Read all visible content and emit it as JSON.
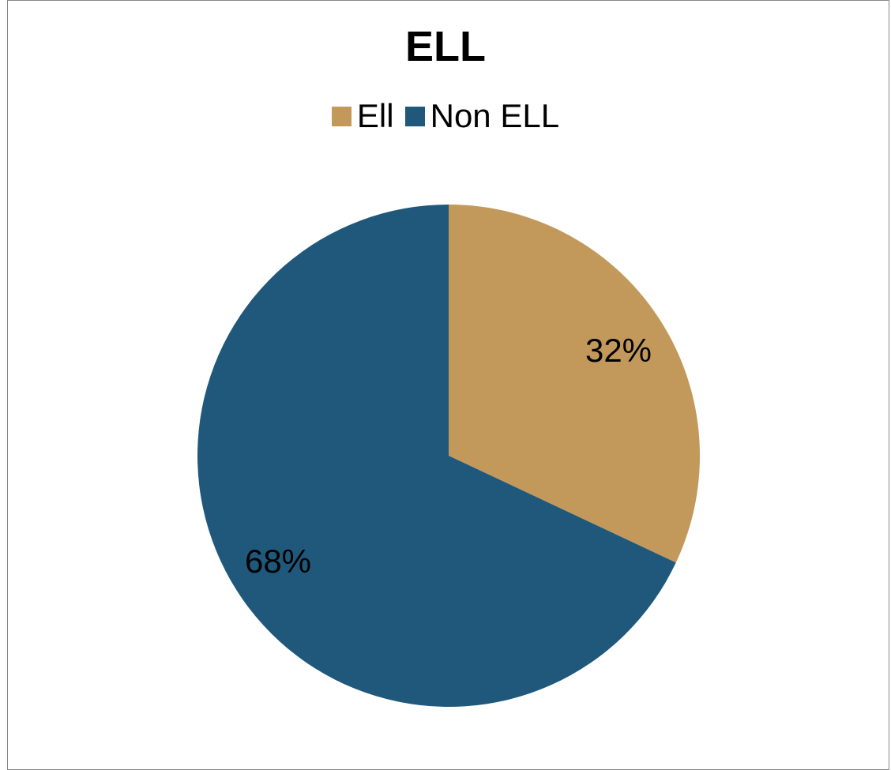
{
  "chart_data": {
    "type": "pie",
    "title": "ELL",
    "categories": [
      "Ell",
      "Non ELL"
    ],
    "values": [
      32,
      68
    ],
    "value_labels": [
      "32%",
      "68%"
    ],
    "colors": [
      "#c3995b",
      "#1f587b"
    ],
    "legend_position": "top"
  }
}
